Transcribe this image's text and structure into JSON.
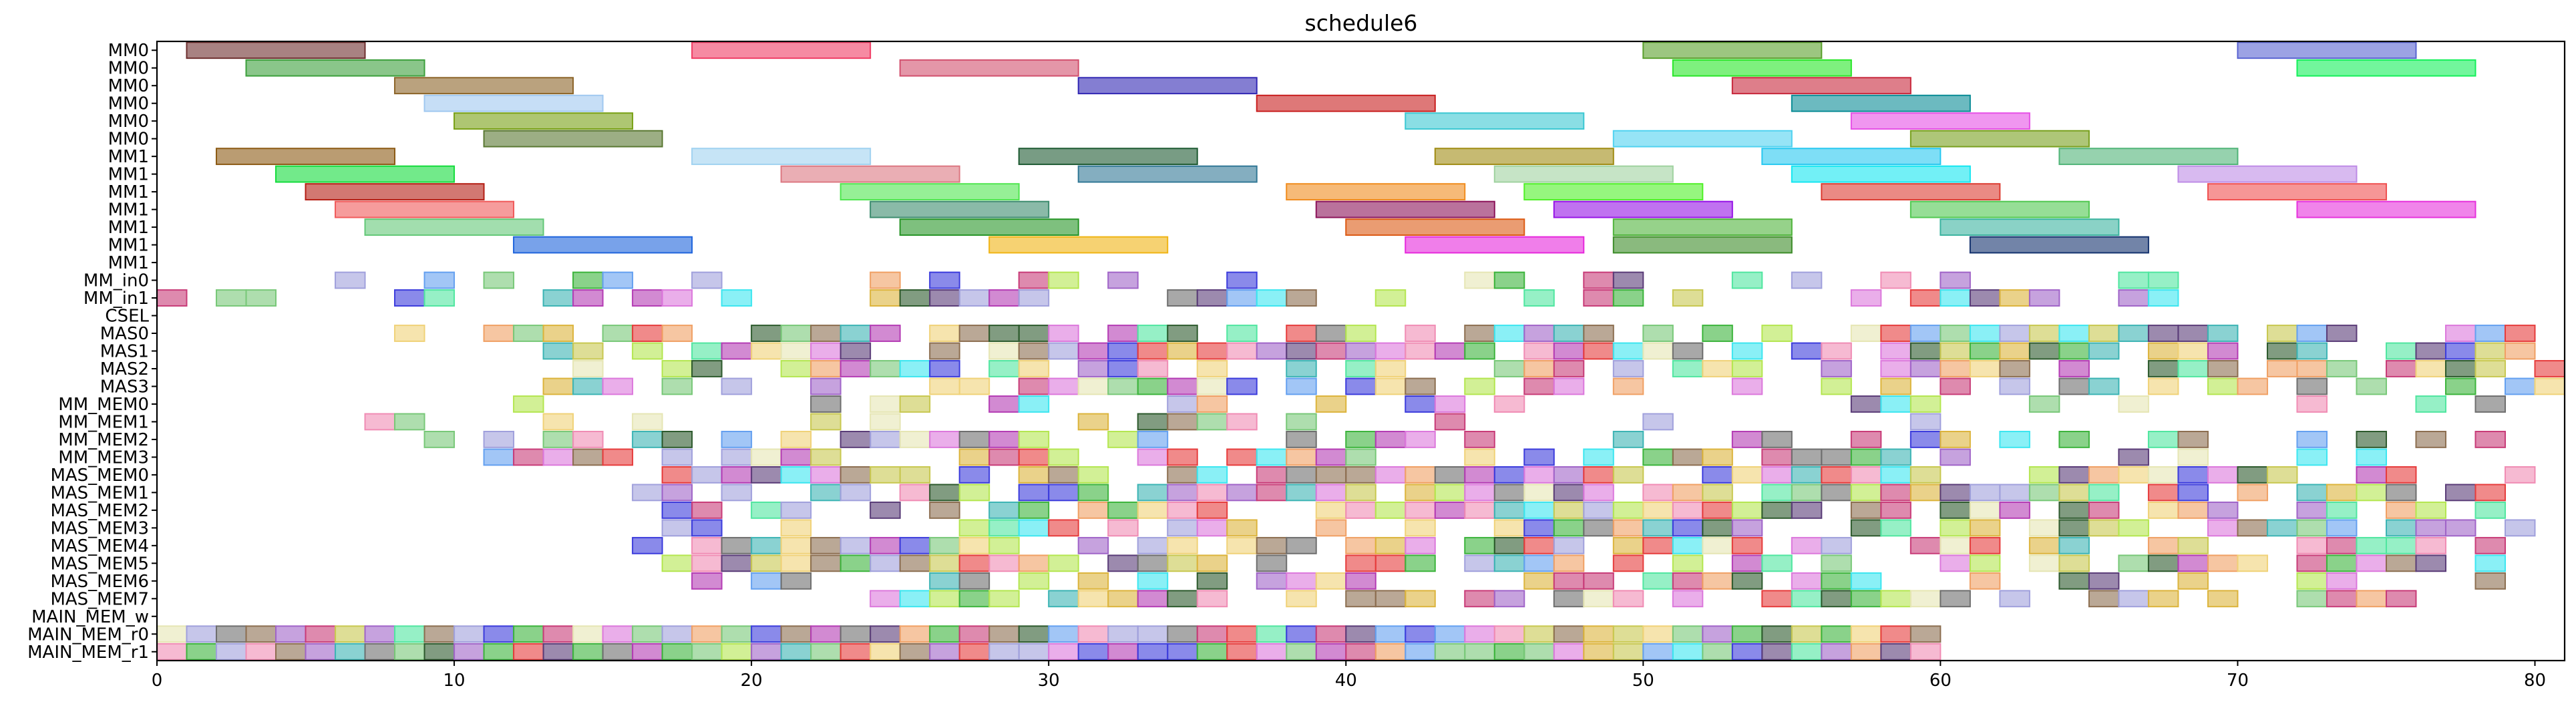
{
  "chart_data": {
    "type": "gantt",
    "title": "schedule6",
    "xlabel": "",
    "ylabel": "",
    "xlim": [
      0,
      81
    ],
    "xticks": [
      0,
      10,
      20,
      30,
      40,
      50,
      60,
      70,
      80
    ],
    "grid": false,
    "legend": "none",
    "rows": [
      "MM0",
      "MM0",
      "MM0",
      "MM0",
      "MM0",
      "MM0",
      "MM1",
      "MM1",
      "MM1",
      "MM1",
      "MM1",
      "MM1",
      "MM1",
      "MM_in0",
      "MM_in1",
      "CSEL",
      "MAS0",
      "MAS1",
      "MAS2",
      "MAS3",
      "MM_MEM0",
      "MM_MEM1",
      "MM_MEM2",
      "MM_MEM3",
      "MAS_MEM0",
      "MAS_MEM1",
      "MAS_MEM2",
      "MAS_MEM3",
      "MAS_MEM4",
      "MAS_MEM5",
      "MAS_MEM6",
      "MAS_MEM7",
      "MAIN_MEM_w",
      "MAIN_MEM_r0",
      "MAIN_MEM_r1"
    ],
    "tasks": [
      {
        "row": 0,
        "start": 1,
        "end": 7,
        "color": "#6e2f2f"
      },
      {
        "row": 0,
        "start": 18,
        "end": 24,
        "color": "#f03c64"
      },
      {
        "row": 0,
        "start": 50,
        "end": 56,
        "color": "#5aa02c"
      },
      {
        "row": 0,
        "start": 70,
        "end": 76,
        "color": "#5a64d2"
      },
      {
        "row": 1,
        "start": 3,
        "end": 9,
        "color": "#3ca03c"
      },
      {
        "row": 1,
        "start": 25,
        "end": 31,
        "color": "#d2506e"
      },
      {
        "row": 1,
        "start": 51,
        "end": 57,
        "color": "#28e628"
      },
      {
        "row": 1,
        "start": 72,
        "end": 78,
        "color": "#14f05a"
      },
      {
        "row": 2,
        "start": 8,
        "end": 14,
        "color": "#8c6428"
      },
      {
        "row": 2,
        "start": 31,
        "end": 37,
        "color": "#3228b4"
      },
      {
        "row": 2,
        "start": 53,
        "end": 59,
        "color": "#c8283c"
      },
      {
        "row": 3,
        "start": 9,
        "end": 15,
        "color": "#a0c8f0"
      },
      {
        "row": 3,
        "start": 37,
        "end": 43,
        "color": "#c81e1e"
      },
      {
        "row": 3,
        "start": 55,
        "end": 61,
        "color": "#0a8c96"
      },
      {
        "row": 4,
        "start": 10,
        "end": 16,
        "color": "#78a014"
      },
      {
        "row": 4,
        "start": 42,
        "end": 48,
        "color": "#3cc8d2"
      },
      {
        "row": 4,
        "start": 57,
        "end": 63,
        "color": "#e650e6"
      },
      {
        "row": 5,
        "start": 11,
        "end": 17,
        "color": "#5a7832"
      },
      {
        "row": 5,
        "start": 49,
        "end": 55,
        "color": "#50d2f0"
      },
      {
        "row": 5,
        "start": 59,
        "end": 65,
        "color": "#78a01e"
      },
      {
        "row": 6,
        "start": 2,
        "end": 8,
        "color": "#8c5a14"
      },
      {
        "row": 6,
        "start": 18,
        "end": 24,
        "color": "#a0d2f0"
      },
      {
        "row": 6,
        "start": 29,
        "end": 35,
        "color": "#1e5a32"
      },
      {
        "row": 6,
        "start": 43,
        "end": 49,
        "color": "#a08c14"
      },
      {
        "row": 6,
        "start": 54,
        "end": 60,
        "color": "#28c8f0"
      },
      {
        "row": 6,
        "start": 64,
        "end": 70,
        "color": "#50b478"
      },
      {
        "row": 7,
        "start": 4,
        "end": 10,
        "color": "#14dc3c"
      },
      {
        "row": 7,
        "start": 21,
        "end": 27,
        "color": "#dc7882"
      },
      {
        "row": 7,
        "start": 31,
        "end": 37,
        "color": "#327896"
      },
      {
        "row": 7,
        "start": 45,
        "end": 51,
        "color": "#a0d2a0"
      },
      {
        "row": 7,
        "start": 55,
        "end": 61,
        "color": "#14e6f0"
      },
      {
        "row": 7,
        "start": 68,
        "end": 74,
        "color": "#be8ce6"
      },
      {
        "row": 8,
        "start": 5,
        "end": 11,
        "color": "#b41e14"
      },
      {
        "row": 8,
        "start": 23,
        "end": 29,
        "color": "#50e650"
      },
      {
        "row": 8,
        "start": 38,
        "end": 44,
        "color": "#f08c1e"
      },
      {
        "row": 8,
        "start": 46,
        "end": 52,
        "color": "#50f028"
      },
      {
        "row": 8,
        "start": 56,
        "end": 62,
        "color": "#dc3c32"
      },
      {
        "row": 8,
        "start": 69,
        "end": 75,
        "color": "#f05050"
      },
      {
        "row": 9,
        "start": 6,
        "end": 12,
        "color": "#f05a5a"
      },
      {
        "row": 9,
        "start": 24,
        "end": 30,
        "color": "#3c8c6e"
      },
      {
        "row": 9,
        "start": 39,
        "end": 45,
        "color": "#8c145a"
      },
      {
        "row": 9,
        "start": 47,
        "end": 53,
        "color": "#9614e6"
      },
      {
        "row": 9,
        "start": 59,
        "end": 65,
        "color": "#50c850"
      },
      {
        "row": 9,
        "start": 72,
        "end": 78,
        "color": "#e632dc"
      },
      {
        "row": 10,
        "start": 7,
        "end": 13,
        "color": "#64c878"
      },
      {
        "row": 10,
        "start": 25,
        "end": 31,
        "color": "#289628"
      },
      {
        "row": 10,
        "start": 40,
        "end": 46,
        "color": "#dc5a14"
      },
      {
        "row": 10,
        "start": 49,
        "end": 55,
        "color": "#50b43c"
      },
      {
        "row": 10,
        "start": 60,
        "end": 66,
        "color": "#3cb4a0"
      },
      {
        "row": 11,
        "start": 12,
        "end": 18,
        "color": "#1e64dc"
      },
      {
        "row": 11,
        "start": 28,
        "end": 34,
        "color": "#f0b414"
      },
      {
        "row": 11,
        "start": 42,
        "end": 48,
        "color": "#e628dc"
      },
      {
        "row": 11,
        "start": 49,
        "end": 55,
        "color": "#3c8c28"
      },
      {
        "row": 11,
        "start": 61,
        "end": 67,
        "color": "#14326e"
      }
    ]
  }
}
